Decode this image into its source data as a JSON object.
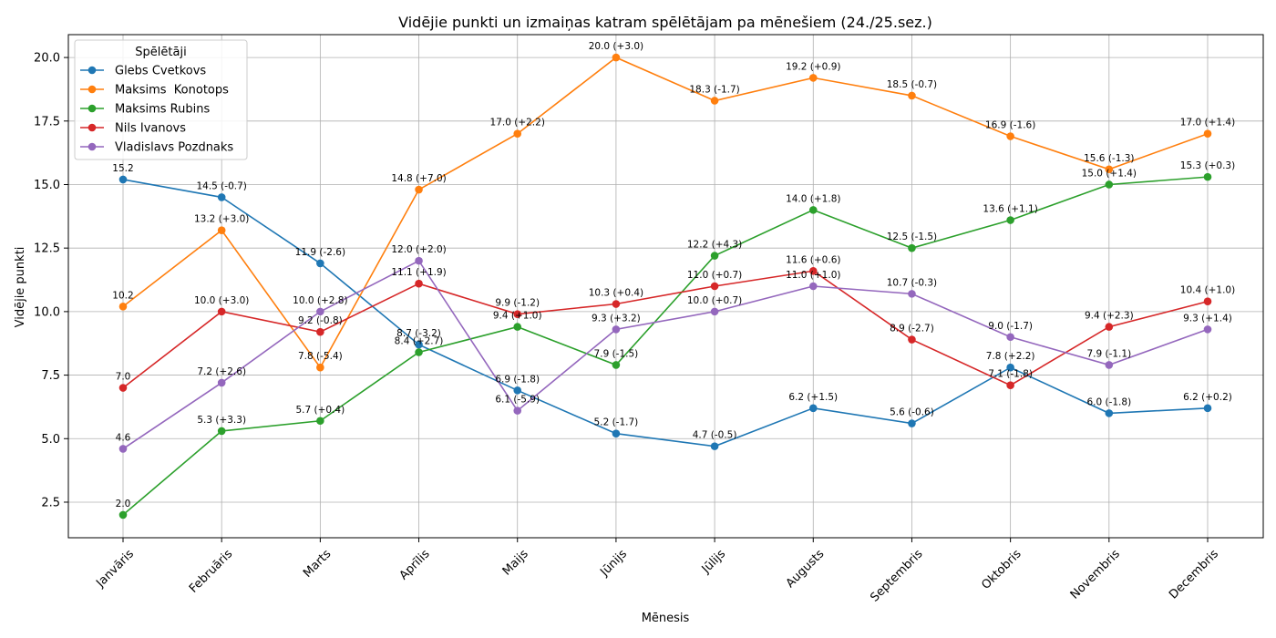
{
  "chart_data": {
    "type": "line",
    "title": "Vidējie punkti un izmaiņas katram spēlētājam pa mēnešiem (24./25.sez.)",
    "xlabel": "Mēnesis",
    "ylabel": "Vidējie punkti",
    "categories": [
      "Janvāris",
      "Februāris",
      "Marts",
      "Aprīlis",
      "Maijs",
      "Jūnijs",
      "Jūlijs",
      "Augusts",
      "Septembris",
      "Oktobris",
      "Novembris",
      "Decembris"
    ],
    "ylim": [
      1.1,
      20.9
    ],
    "yticks": [
      2.5,
      5.0,
      7.5,
      10.0,
      12.5,
      15.0,
      17.5,
      20.0
    ],
    "grid": true,
    "legend": {
      "title": "Spēlētāji",
      "position": "top-left"
    },
    "series": [
      {
        "name": "Glebs Cvetkovs",
        "color": "#1f77b4",
        "values": [
          15.2,
          14.5,
          11.9,
          8.7,
          6.9,
          5.2,
          4.7,
          6.2,
          5.6,
          7.8,
          6.0,
          6.2
        ],
        "labels": [
          "15.2",
          "14.5 (-0.7)",
          "11.9 (-2.6)",
          "8.7 (-3.2)",
          "6.9 (-1.8)",
          "5.2 (-1.7)",
          "4.7 (-0.5)",
          "6.2 (+1.5)",
          "5.6 (-0.6)",
          "7.8 (+2.2)",
          "6.0 (-1.8)",
          "6.2 (+0.2)"
        ]
      },
      {
        "name": "Maksims  Konotops",
        "color": "#ff7f0e",
        "values": [
          10.2,
          13.2,
          7.8,
          14.8,
          17.0,
          20.0,
          18.3,
          19.2,
          18.5,
          16.9,
          15.6,
          17.0
        ],
        "labels": [
          "10.2",
          "13.2 (+3.0)",
          "7.8 (-5.4)",
          "14.8 (+7.0)",
          "17.0 (+2.2)",
          "20.0 (+3.0)",
          "18.3 (-1.7)",
          "19.2 (+0.9)",
          "18.5 (-0.7)",
          "16.9 (-1.6)",
          "15.6 (-1.3)",
          "17.0 (+1.4)"
        ]
      },
      {
        "name": "Maksims Rubins",
        "color": "#2ca02c",
        "values": [
          2.0,
          5.3,
          5.7,
          8.4,
          9.4,
          7.9,
          12.2,
          14.0,
          12.5,
          13.6,
          15.0,
          15.3
        ],
        "labels": [
          "2.0",
          "5.3 (+3.3)",
          "5.7 (+0.4)",
          "8.4 (+2.7)",
          "9.4 (+1.0)",
          "7.9 (-1.5)",
          "12.2 (+4.3)",
          "14.0 (+1.8)",
          "12.5 (-1.5)",
          "13.6 (+1.1)",
          "15.0 (+1.4)",
          "15.3 (+0.3)"
        ]
      },
      {
        "name": "Nils Ivanovs",
        "color": "#d62728",
        "values": [
          7.0,
          10.0,
          9.2,
          11.1,
          9.9,
          10.3,
          11.0,
          11.6,
          8.9,
          7.1,
          9.4,
          10.4
        ],
        "labels": [
          "7.0",
          "10.0 (+3.0)",
          "9.2 (-0.8)",
          "11.1 (+1.9)",
          "9.9 (-1.2)",
          "10.3 (+0.4)",
          "11.0 (+0.7)",
          "11.6 (+0.6)",
          "8.9 (-2.7)",
          "7.1 (-1.8)",
          "9.4 (+2.3)",
          "10.4 (+1.0)"
        ]
      },
      {
        "name": "Vladislavs Pozdnaks",
        "color": "#9467bd",
        "values": [
          4.6,
          7.2,
          10.0,
          12.0,
          6.1,
          9.3,
          10.0,
          11.0,
          10.7,
          9.0,
          7.9,
          9.3
        ],
        "labels": [
          "4.6",
          "7.2 (+2.6)",
          "10.0 (+2.8)",
          "12.0 (+2.0)",
          "6.1 (-5.9)",
          "9.3 (+3.2)",
          "10.0 (+0.7)",
          "11.0 (+1.0)",
          "10.7 (-0.3)",
          "9.0 (-1.7)",
          "7.9 (-1.1)",
          "9.3 (+1.4)"
        ]
      }
    ]
  }
}
